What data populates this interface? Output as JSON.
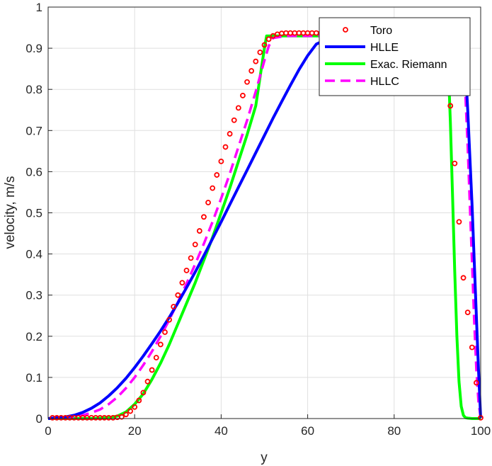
{
  "chart_data": {
    "type": "line",
    "title": "",
    "xlabel": "y",
    "ylabel": "velocity, m/s",
    "xlim": [
      0,
      100
    ],
    "ylim": [
      0,
      1
    ],
    "xticks": [
      0,
      20,
      40,
      60,
      80,
      100
    ],
    "yticks": [
      0,
      0.1,
      0.2,
      0.3,
      0.4,
      0.5,
      0.6,
      0.7,
      0.8,
      0.9,
      1
    ],
    "grid": true,
    "legend_position": "top-right",
    "series": [
      {
        "name": "Toro",
        "color": "#ff0000",
        "style": "markers-circle",
        "x": [
          1,
          2,
          3,
          4,
          5,
          6,
          7,
          8,
          9,
          10,
          11,
          12,
          13,
          14,
          15,
          16,
          17,
          18,
          19,
          20,
          21,
          22,
          23,
          24,
          25,
          26,
          27,
          28,
          29,
          30,
          31,
          32,
          33,
          34,
          35,
          36,
          37,
          38,
          39,
          40,
          41,
          42,
          43,
          44,
          45,
          46,
          47,
          48,
          49,
          50,
          51,
          52,
          53,
          54,
          55,
          56,
          57,
          58,
          59,
          60,
          61,
          62,
          63,
          64,
          65,
          66,
          67,
          68,
          69,
          70,
          71,
          72,
          73,
          74,
          75,
          76,
          77,
          78,
          79,
          80,
          81,
          82,
          83,
          84,
          85,
          86,
          87,
          88,
          89,
          90,
          91,
          92,
          93,
          94,
          95,
          96,
          97,
          98,
          99,
          100
        ],
        "y": [
          0.002,
          0.002,
          0.002,
          0.002,
          0.002,
          0.002,
          0.002,
          0.002,
          0.002,
          0.002,
          0.002,
          0.002,
          0.002,
          0.002,
          0.002,
          0.003,
          0.004,
          0.01,
          0.018,
          0.028,
          0.044,
          0.063,
          0.09,
          0.118,
          0.148,
          0.18,
          0.21,
          0.24,
          0.272,
          0.3,
          0.33,
          0.36,
          0.39,
          0.423,
          0.456,
          0.49,
          0.525,
          0.56,
          0.592,
          0.625,
          0.66,
          0.692,
          0.725,
          0.755,
          0.785,
          0.818,
          0.845,
          0.868,
          0.89,
          0.908,
          0.922,
          0.93,
          0.934,
          0.936,
          0.937,
          0.937,
          0.937,
          0.937,
          0.937,
          0.937,
          0.937,
          0.937,
          0.937,
          0.937,
          0.937,
          0.937,
          0.937,
          0.937,
          0.937,
          0.937,
          0.937,
          0.937,
          0.937,
          0.937,
          0.937,
          0.937,
          0.937,
          0.937,
          0.937,
          0.937,
          0.937,
          0.937,
          0.937,
          0.937,
          0.937,
          0.937,
          0.937,
          0.937,
          0.937,
          0.937,
          0.937,
          0.937,
          0.76,
          0.62,
          0.478,
          0.342,
          0.258,
          0.173,
          0.087,
          0.002
        ]
      },
      {
        "name": "HLLE",
        "color": "#0000ff",
        "style": "solid",
        "x": [
          0,
          2,
          4,
          6,
          8,
          10,
          12,
          14,
          16,
          18,
          20,
          22,
          24,
          26,
          28,
          30,
          32,
          34,
          36,
          38,
          40,
          42,
          44,
          46,
          48,
          50,
          52,
          54,
          56,
          58,
          60,
          62,
          65,
          70,
          80,
          90,
          95,
          96,
          96.5,
          97,
          98,
          99,
          99.5,
          100
        ],
        "y": [
          0,
          0.002,
          0.004,
          0.008,
          0.015,
          0.025,
          0.038,
          0.055,
          0.075,
          0.098,
          0.124,
          0.152,
          0.182,
          0.213,
          0.246,
          0.281,
          0.318,
          0.356,
          0.396,
          0.437,
          0.478,
          0.52,
          0.562,
          0.604,
          0.646,
          0.688,
          0.73,
          0.77,
          0.81,
          0.848,
          0.882,
          0.91,
          0.925,
          0.93,
          0.93,
          0.93,
          0.93,
          0.92,
          0.85,
          0.75,
          0.52,
          0.25,
          0.12,
          0.002
        ]
      },
      {
        "name": "Exac. Riemann",
        "color": "#00ff00",
        "style": "solid",
        "x": [
          0,
          5,
          10,
          14,
          16,
          18,
          20,
          22,
          24,
          26,
          28,
          30,
          32,
          34,
          36,
          38,
          40,
          42,
          44,
          46,
          48,
          50,
          50.5,
          51,
          52,
          55,
          60,
          70,
          80,
          90,
          92,
          92.5,
          93,
          93.5,
          94,
          94.5,
          95,
          95.5,
          96,
          96.5,
          97,
          98,
          100
        ],
        "y": [
          0,
          0,
          0,
          0.002,
          0.006,
          0.016,
          0.035,
          0.06,
          0.095,
          0.135,
          0.18,
          0.23,
          0.28,
          0.33,
          0.385,
          0.44,
          0.5,
          0.56,
          0.625,
          0.69,
          0.76,
          0.9,
          0.93,
          0.93,
          0.93,
          0.93,
          0.93,
          0.93,
          0.93,
          0.93,
          0.92,
          0.86,
          0.72,
          0.54,
          0.36,
          0.2,
          0.09,
          0.03,
          0.008,
          0.002,
          0.001,
          0,
          0
        ]
      },
      {
        "name": "HLLC",
        "color": "#ff00ff",
        "style": "dashed",
        "x": [
          0,
          2,
          4,
          6,
          8,
          10,
          12,
          14,
          16,
          18,
          20,
          22,
          24,
          26,
          28,
          30,
          32,
          34,
          36,
          38,
          40,
          42,
          44,
          46,
          48,
          50,
          51,
          52,
          55,
          60,
          70,
          80,
          90,
          95,
          95.5,
          96,
          96.5,
          97,
          97.5,
          98,
          98.5,
          99,
          99.5,
          100
        ],
        "y": [
          0,
          0.001,
          0.002,
          0.004,
          0.008,
          0.014,
          0.022,
          0.035,
          0.052,
          0.074,
          0.1,
          0.13,
          0.163,
          0.2,
          0.24,
          0.283,
          0.328,
          0.375,
          0.425,
          0.478,
          0.535,
          0.595,
          0.66,
          0.725,
          0.795,
          0.87,
          0.905,
          0.925,
          0.93,
          0.93,
          0.93,
          0.93,
          0.93,
          0.93,
          0.92,
          0.87,
          0.78,
          0.66,
          0.52,
          0.38,
          0.24,
          0.12,
          0.04,
          0.002
        ]
      }
    ]
  }
}
